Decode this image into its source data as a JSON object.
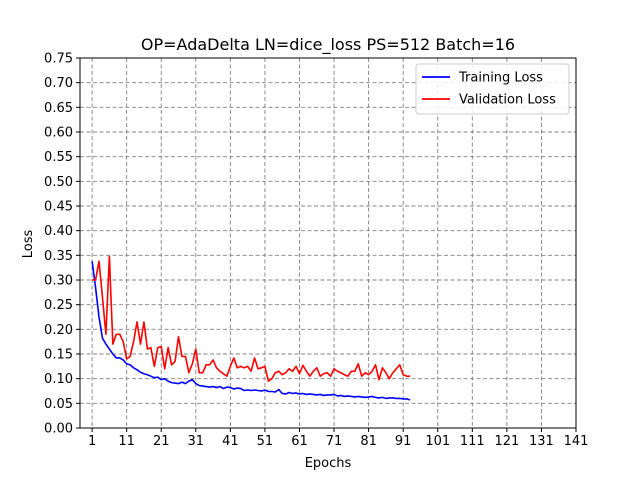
{
  "chart_data": {
    "type": "line",
    "title": "OP=AdaDelta LN=dice_loss PS=512 Batch=16",
    "xlabel": "Epochs",
    "ylabel": "Loss",
    "xlim": [
      -2.5,
      141
    ],
    "ylim": [
      0,
      0.75
    ],
    "xticks": [
      1,
      11,
      21,
      31,
      41,
      51,
      61,
      71,
      81,
      91,
      101,
      111,
      121,
      131,
      141
    ],
    "yticks": [
      0.0,
      0.05,
      0.1,
      0.15,
      0.2,
      0.25,
      0.3,
      0.35,
      0.4,
      0.45,
      0.5,
      0.55,
      0.6,
      0.65,
      0.7,
      0.75
    ],
    "ytick_labels": [
      "0.00",
      "0.05",
      "0.10",
      "0.15",
      "0.20",
      "0.25",
      "0.30",
      "0.35",
      "0.40",
      "0.45",
      "0.50",
      "0.55",
      "0.60",
      "0.65",
      "0.70",
      "0.75"
    ],
    "grid": true,
    "legend_position": "top-right",
    "series": [
      {
        "name": "Training Loss",
        "color": "#0000ff",
        "x": [
          1,
          2,
          3,
          4,
          5,
          6,
          7,
          8,
          9,
          10,
          11,
          12,
          13,
          14,
          15,
          16,
          17,
          18,
          19,
          20,
          21,
          22,
          23,
          24,
          25,
          26,
          27,
          28,
          29,
          30,
          31,
          32,
          33,
          34,
          35,
          36,
          37,
          38,
          39,
          40,
          41,
          42,
          43,
          44,
          45,
          46,
          47,
          48,
          49,
          50,
          51,
          52,
          53,
          54,
          55,
          56,
          57,
          58,
          59,
          60,
          61,
          62,
          63,
          64,
          65,
          66,
          67,
          68,
          69,
          70,
          71,
          72,
          73,
          74,
          75,
          76,
          77,
          78,
          79,
          80,
          81,
          82,
          83,
          84,
          85,
          86,
          87,
          88,
          89,
          90,
          91,
          92,
          93
        ],
        "y": [
          0.338,
          0.285,
          0.225,
          0.182,
          0.17,
          0.16,
          0.15,
          0.142,
          0.142,
          0.138,
          0.13,
          0.128,
          0.122,
          0.118,
          0.113,
          0.11,
          0.108,
          0.105,
          0.102,
          0.103,
          0.098,
          0.1,
          0.095,
          0.092,
          0.091,
          0.09,
          0.093,
          0.09,
          0.095,
          0.098,
          0.09,
          0.086,
          0.085,
          0.084,
          0.083,
          0.084,
          0.082,
          0.084,
          0.08,
          0.083,
          0.082,
          0.079,
          0.081,
          0.08,
          0.076,
          0.077,
          0.076,
          0.077,
          0.076,
          0.075,
          0.077,
          0.074,
          0.074,
          0.073,
          0.078,
          0.07,
          0.069,
          0.072,
          0.07,
          0.071,
          0.069,
          0.07,
          0.068,
          0.069,
          0.068,
          0.067,
          0.068,
          0.066,
          0.067,
          0.067,
          0.068,
          0.065,
          0.066,
          0.064,
          0.065,
          0.064,
          0.063,
          0.064,
          0.063,
          0.062,
          0.063,
          0.064,
          0.062,
          0.061,
          0.062,
          0.06,
          0.061,
          0.061,
          0.06,
          0.06,
          0.059,
          0.059,
          0.057
        ]
      },
      {
        "name": "Validation Loss",
        "color": "#ff0000",
        "x": [
          1,
          2,
          3,
          4,
          5,
          6,
          7,
          8,
          9,
          10,
          11,
          12,
          13,
          14,
          15,
          16,
          17,
          18,
          19,
          20,
          21,
          22,
          23,
          24,
          25,
          26,
          27,
          28,
          29,
          30,
          31,
          32,
          33,
          34,
          35,
          36,
          37,
          38,
          39,
          40,
          41,
          42,
          43,
          44,
          45,
          46,
          47,
          48,
          49,
          50,
          51,
          52,
          53,
          54,
          55,
          56,
          57,
          58,
          59,
          60,
          61,
          62,
          63,
          64,
          65,
          66,
          67,
          68,
          69,
          70,
          71,
          72,
          73,
          74,
          75,
          76,
          77,
          78,
          79,
          80,
          81,
          82,
          83,
          84,
          85,
          86,
          87,
          88,
          89,
          90,
          91,
          92,
          93
        ],
        "y": [
          0.3,
          0.3,
          0.338,
          0.265,
          0.19,
          0.348,
          0.17,
          0.19,
          0.19,
          0.175,
          0.14,
          0.145,
          0.175,
          0.215,
          0.17,
          0.215,
          0.16,
          0.163,
          0.125,
          0.163,
          0.165,
          0.12,
          0.163,
          0.128,
          0.135,
          0.185,
          0.145,
          0.145,
          0.112,
          0.13,
          0.16,
          0.112,
          0.112,
          0.128,
          0.128,
          0.138,
          0.122,
          0.115,
          0.11,
          0.105,
          0.125,
          0.142,
          0.122,
          0.125,
          0.122,
          0.125,
          0.115,
          0.142,
          0.12,
          0.122,
          0.125,
          0.095,
          0.1,
          0.112,
          0.115,
          0.108,
          0.112,
          0.12,
          0.115,
          0.125,
          0.11,
          0.127,
          0.115,
          0.105,
          0.115,
          0.122,
          0.105,
          0.11,
          0.112,
          0.105,
          0.12,
          0.115,
          0.112,
          0.108,
          0.105,
          0.115,
          0.115,
          0.13,
          0.105,
          0.112,
          0.108,
          0.115,
          0.128,
          0.098,
          0.122,
          0.112,
          0.1,
          0.112,
          0.12,
          0.128,
          0.108,
          0.105,
          0.105
        ]
      }
    ]
  }
}
